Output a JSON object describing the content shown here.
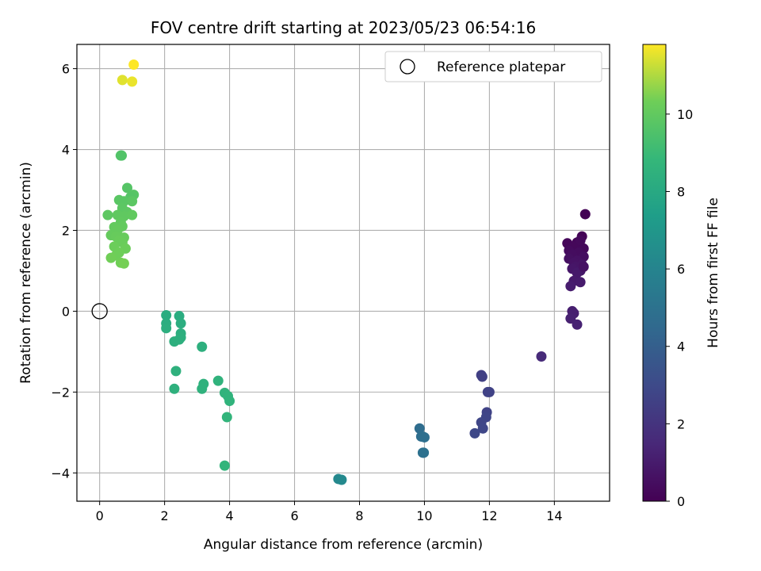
{
  "chart_data": {
    "type": "scatter",
    "title": "FOV centre drift starting at 2023/05/23 06:54:16",
    "xlabel": "Angular distance from reference (arcmin)",
    "ylabel": "Rotation from reference (arcmin)",
    "xlim": [
      -0.7,
      15.7
    ],
    "ylim": [
      -4.7,
      6.6
    ],
    "xticks": [
      0,
      2,
      4,
      6,
      8,
      10,
      12,
      14
    ],
    "yticks": [
      -4,
      -2,
      0,
      2,
      4,
      6
    ],
    "grid": true,
    "legend": {
      "placement": "top-right",
      "entries": [
        "Reference platepar"
      ]
    },
    "reference_point": {
      "x": 0,
      "y": 0,
      "name": "Reference platepar"
    },
    "colorbar": {
      "label": "Hours from first FF file",
      "range": [
        0,
        11.8
      ],
      "ticks": [
        0,
        2,
        4,
        6,
        8,
        10
      ],
      "colormap": "viridis"
    },
    "points": [
      {
        "x": 14.95,
        "y": 2.4,
        "h": 0.05
      },
      {
        "x": 14.85,
        "y": 1.85,
        "h": 0.1
      },
      {
        "x": 14.7,
        "y": 1.7,
        "h": 0.15
      },
      {
        "x": 14.4,
        "y": 1.68,
        "h": 0.2
      },
      {
        "x": 14.6,
        "y": 1.6,
        "h": 0.25
      },
      {
        "x": 14.9,
        "y": 1.55,
        "h": 0.3
      },
      {
        "x": 14.45,
        "y": 1.5,
        "h": 0.35
      },
      {
        "x": 14.75,
        "y": 1.45,
        "h": 0.4
      },
      {
        "x": 14.55,
        "y": 1.4,
        "h": 0.45
      },
      {
        "x": 14.9,
        "y": 1.35,
        "h": 0.5
      },
      {
        "x": 14.45,
        "y": 1.3,
        "h": 0.55
      },
      {
        "x": 14.7,
        "y": 1.25,
        "h": 0.6
      },
      {
        "x": 14.6,
        "y": 1.2,
        "h": 0.65
      },
      {
        "x": 14.85,
        "y": 1.15,
        "h": 0.7
      },
      {
        "x": 14.65,
        "y": 1.1,
        "h": 0.75
      },
      {
        "x": 14.55,
        "y": 1.05,
        "h": 0.8
      },
      {
        "x": 14.8,
        "y": 1.0,
        "h": 0.85
      },
      {
        "x": 14.7,
        "y": 0.95,
        "h": 0.9
      },
      {
        "x": 14.6,
        "y": 0.75,
        "h": 0.95
      },
      {
        "x": 14.8,
        "y": 0.72,
        "h": 1.0
      },
      {
        "x": 14.5,
        "y": 0.62,
        "h": 1.05
      },
      {
        "x": 14.55,
        "y": 0.0,
        "h": 1.1
      },
      {
        "x": 14.6,
        "y": -0.05,
        "h": 1.15
      },
      {
        "x": 14.5,
        "y": -0.18,
        "h": 1.2
      },
      {
        "x": 14.7,
        "y": -0.33,
        "h": 1.25
      },
      {
        "x": 14.8,
        "y": 1.75,
        "h": 0.3
      },
      {
        "x": 14.9,
        "y": 1.1,
        "h": 0.6
      },
      {
        "x": 13.6,
        "y": -1.12,
        "h": 1.6
      },
      {
        "x": 11.75,
        "y": -1.58,
        "h": 2.5
      },
      {
        "x": 11.78,
        "y": -1.62,
        "h": 2.55
      },
      {
        "x": 12.0,
        "y": -2.0,
        "h": 2.6
      },
      {
        "x": 11.95,
        "y": -2.0,
        "h": 2.65
      },
      {
        "x": 11.92,
        "y": -2.5,
        "h": 2.7
      },
      {
        "x": 11.9,
        "y": -2.62,
        "h": 2.75
      },
      {
        "x": 11.75,
        "y": -2.75,
        "h": 2.8
      },
      {
        "x": 11.8,
        "y": -2.9,
        "h": 2.85
      },
      {
        "x": 11.55,
        "y": -3.02,
        "h": 2.9
      },
      {
        "x": 9.85,
        "y": -2.9,
        "h": 4.7
      },
      {
        "x": 9.9,
        "y": -3.1,
        "h": 4.75
      },
      {
        "x": 10.0,
        "y": -3.12,
        "h": 4.8
      },
      {
        "x": 9.95,
        "y": -3.1,
        "h": 4.85
      },
      {
        "x": 9.95,
        "y": -3.5,
        "h": 4.9
      },
      {
        "x": 9.98,
        "y": -3.5,
        "h": 4.95
      },
      {
        "x": 7.35,
        "y": -4.15,
        "h": 6.2
      },
      {
        "x": 7.45,
        "y": -4.17,
        "h": 6.25
      },
      {
        "x": 2.05,
        "y": -0.1,
        "h": 8.2
      },
      {
        "x": 2.45,
        "y": -0.12,
        "h": 8.2
      },
      {
        "x": 2.05,
        "y": -0.3,
        "h": 8.25
      },
      {
        "x": 2.5,
        "y": -0.3,
        "h": 8.25
      },
      {
        "x": 2.05,
        "y": -0.42,
        "h": 8.3
      },
      {
        "x": 2.5,
        "y": -0.55,
        "h": 8.3
      },
      {
        "x": 2.5,
        "y": -0.65,
        "h": 8.35
      },
      {
        "x": 2.45,
        "y": -0.7,
        "h": 8.35
      },
      {
        "x": 2.3,
        "y": -0.75,
        "h": 8.4
      },
      {
        "x": 3.15,
        "y": -0.88,
        "h": 8.4
      },
      {
        "x": 2.35,
        "y": -1.48,
        "h": 8.45
      },
      {
        "x": 2.3,
        "y": -1.92,
        "h": 8.45
      },
      {
        "x": 3.2,
        "y": -1.8,
        "h": 8.5
      },
      {
        "x": 3.15,
        "y": -1.92,
        "h": 8.5
      },
      {
        "x": 3.65,
        "y": -1.72,
        "h": 8.55
      },
      {
        "x": 3.85,
        "y": -2.02,
        "h": 8.55
      },
      {
        "x": 3.95,
        "y": -2.1,
        "h": 8.6
      },
      {
        "x": 4.0,
        "y": -2.22,
        "h": 8.6
      },
      {
        "x": 3.92,
        "y": -2.62,
        "h": 8.65
      },
      {
        "x": 3.85,
        "y": -3.82,
        "h": 8.65
      },
      {
        "x": 0.65,
        "y": 3.85,
        "h": 9.6
      },
      {
        "x": 0.68,
        "y": 3.85,
        "h": 9.6
      },
      {
        "x": 0.85,
        "y": 3.05,
        "h": 9.7
      },
      {
        "x": 1.05,
        "y": 2.88,
        "h": 9.75
      },
      {
        "x": 0.95,
        "y": 2.82,
        "h": 9.7
      },
      {
        "x": 0.6,
        "y": 2.75,
        "h": 9.8
      },
      {
        "x": 0.75,
        "y": 2.72,
        "h": 9.8
      },
      {
        "x": 1.0,
        "y": 2.72,
        "h": 9.85
      },
      {
        "x": 0.7,
        "y": 2.55,
        "h": 9.85
      },
      {
        "x": 0.85,
        "y": 2.45,
        "h": 9.9
      },
      {
        "x": 0.25,
        "y": 2.38,
        "h": 9.9
      },
      {
        "x": 0.55,
        "y": 2.38,
        "h": 9.95
      },
      {
        "x": 0.75,
        "y": 2.35,
        "h": 9.95
      },
      {
        "x": 1.0,
        "y": 2.38,
        "h": 10.0
      },
      {
        "x": 0.65,
        "y": 2.2,
        "h": 10.0
      },
      {
        "x": 0.45,
        "y": 2.08,
        "h": 10.05
      },
      {
        "x": 0.7,
        "y": 2.1,
        "h": 10.05
      },
      {
        "x": 0.55,
        "y": 2.0,
        "h": 10.1
      },
      {
        "x": 0.35,
        "y": 1.88,
        "h": 10.1
      },
      {
        "x": 0.5,
        "y": 1.85,
        "h": 10.15
      },
      {
        "x": 0.75,
        "y": 1.82,
        "h": 10.15
      },
      {
        "x": 0.6,
        "y": 1.75,
        "h": 10.2
      },
      {
        "x": 0.7,
        "y": 1.7,
        "h": 10.2
      },
      {
        "x": 0.45,
        "y": 1.6,
        "h": 10.25
      },
      {
        "x": 0.8,
        "y": 1.55,
        "h": 10.25
      },
      {
        "x": 0.6,
        "y": 1.45,
        "h": 10.3
      },
      {
        "x": 0.5,
        "y": 1.38,
        "h": 10.3
      },
      {
        "x": 0.35,
        "y": 1.32,
        "h": 10.35
      },
      {
        "x": 0.65,
        "y": 1.2,
        "h": 10.35
      },
      {
        "x": 0.75,
        "y": 1.18,
        "h": 10.4
      },
      {
        "x": 0.7,
        "y": 5.72,
        "h": 11.5
      },
      {
        "x": 1.0,
        "y": 5.68,
        "h": 11.6
      },
      {
        "x": 1.05,
        "y": 6.1,
        "h": 11.8
      }
    ]
  }
}
